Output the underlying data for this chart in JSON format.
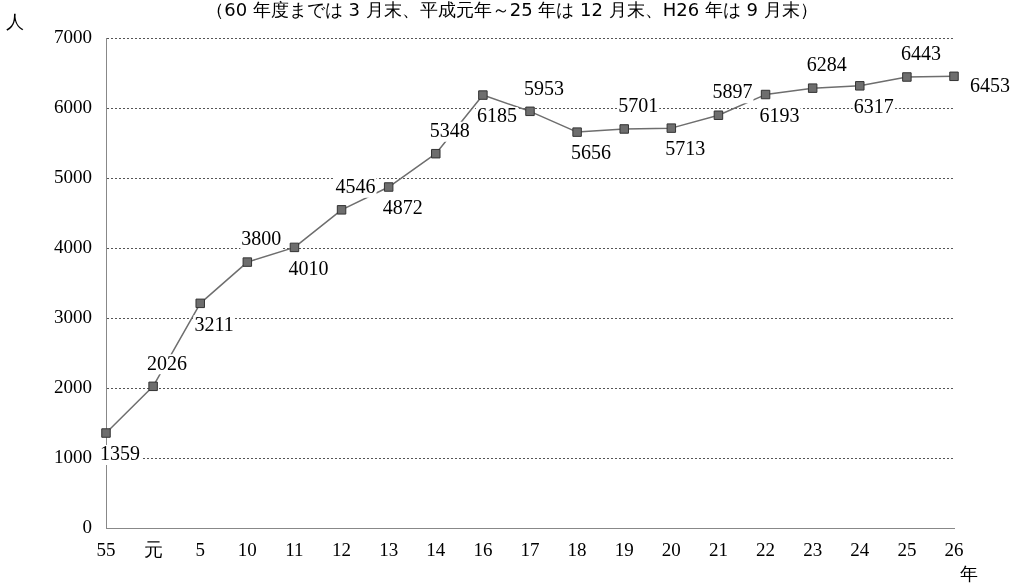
{
  "chart_data": {
    "type": "line",
    "subtitle": "（60 年度までは 3 月末、平成元年～25 年は 12 月末、H26 年は 9 月末）",
    "ylabel": "人",
    "xlabel": "年",
    "categories": [
      "55",
      "元",
      "5",
      "10",
      "11",
      "12",
      "13",
      "14",
      "16",
      "17",
      "18",
      "19",
      "20",
      "21",
      "22",
      "23",
      "24",
      "25",
      "26"
    ],
    "series": [
      {
        "color": "#6e6e6e",
        "values": [
          1359,
          2026,
          3211,
          3800,
          4010,
          4546,
          4872,
          5348,
          6185,
          5953,
          5656,
          5701,
          5713,
          5897,
          6193,
          6284,
          6317,
          6443,
          6453
        ]
      }
    ],
    "ylim": [
      0,
      7000
    ],
    "yticks": [
      0,
      1000,
      2000,
      3000,
      4000,
      5000,
      6000,
      7000
    ],
    "grid": "y",
    "marker": "square",
    "line_style": "solid",
    "data_labels": true,
    "legend": false
  }
}
